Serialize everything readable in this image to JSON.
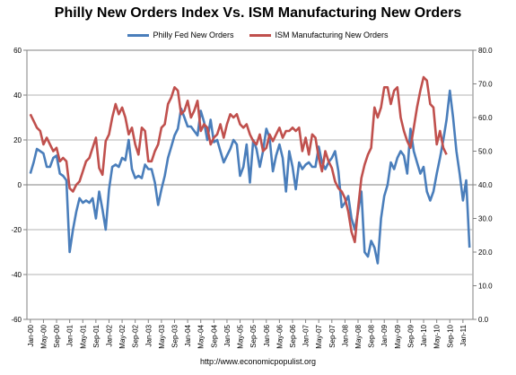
{
  "chart_data": {
    "type": "line",
    "title": "Philly New Orders Index Vs.  ISM Manufacturing New Orders",
    "source": "http://www.economicpopulist.org",
    "xlabel": "",
    "ylabel": "",
    "legend_position": "top-center",
    "grid": true,
    "x_axis_dates": [
      "Jan-00",
      "May-00",
      "Sep-00",
      "Jan-01",
      "May-01",
      "Sep-01",
      "Jan-02",
      "May-02",
      "Sep-02",
      "Jan-03",
      "May-03",
      "Sep-03",
      "Jan-04",
      "May-04",
      "Sep-04",
      "Jan-05",
      "May-05",
      "Sep-05",
      "Jan-06",
      "May-06",
      "Sep-06",
      "Jan-07",
      "May-07",
      "Sep-07",
      "Jan-08",
      "May-08",
      "Sep-08",
      "Jan-09",
      "May-09",
      "Sep-09",
      "Jan-10",
      "May-10",
      "Sep-10",
      "Jan-11",
      "May-11"
    ],
    "y_left": {
      "ylim": [
        -60,
        60
      ],
      "ticks": [
        "-60",
        "-40",
        "-20",
        "0",
        "20",
        "40",
        "60"
      ]
    },
    "y_right": {
      "ylim": [
        0,
        80
      ],
      "ticks": [
        "0.0",
        "10.0",
        "20.0",
        "30.0",
        "40.0",
        "50.0",
        "60.0",
        "70.0",
        "80.0"
      ]
    },
    "series": [
      {
        "name": "Philly Fed New Orders",
        "color": "#4a7ebb",
        "axis": "left",
        "values": [
          5,
          10,
          16,
          15,
          14,
          8,
          8,
          12,
          13,
          5,
          4,
          2,
          -30,
          -20,
          -12,
          -6,
          -8,
          -7,
          -8,
          -6,
          -15,
          -3,
          -11,
          -20,
          -2,
          8,
          9,
          8,
          12,
          11,
          20,
          7,
          3,
          4,
          3,
          9,
          7,
          7,
          1,
          -9,
          -2,
          4,
          12,
          17,
          22,
          25,
          34,
          30,
          26,
          26,
          24,
          22,
          33,
          28,
          20,
          29,
          19,
          20,
          15,
          10,
          13,
          16,
          20,
          18,
          4,
          8,
          18,
          1,
          20,
          16,
          8,
          15,
          25,
          21,
          6,
          13,
          18,
          12,
          -3,
          15,
          8,
          -2,
          10,
          7,
          9,
          10,
          8,
          8,
          17,
          10,
          7,
          10,
          12,
          15,
          6,
          -10,
          -8,
          -5,
          -15,
          -20,
          -12,
          -3,
          -30,
          -32,
          -25,
          -28,
          -35,
          -15,
          -5,
          0,
          10,
          7,
          12,
          15,
          13,
          5,
          25,
          15,
          10,
          5,
          8,
          -3,
          -7,
          -3,
          5,
          12,
          20,
          29,
          42,
          30,
          15,
          5,
          -7,
          2,
          -28
        ]
      },
      {
        "name": "ISM Manufacturing New Orders",
        "color": "#c0504d",
        "axis": "right",
        "values": [
          61,
          59,
          57,
          56,
          52,
          54,
          52,
          50,
          51,
          47,
          48,
          47,
          39,
          38,
          40,
          41,
          44,
          47,
          48,
          51,
          54,
          45,
          43,
          53,
          55,
          60,
          64,
          61,
          63,
          60,
          55,
          57,
          52,
          49,
          57,
          56,
          47,
          47,
          50,
          52,
          57,
          58,
          64,
          66,
          69,
          68,
          61,
          62,
          65,
          60,
          62,
          65,
          56,
          58,
          57,
          52,
          54,
          55,
          58,
          54,
          58,
          61,
          60,
          61,
          58,
          57,
          58,
          55,
          53,
          52,
          55,
          50,
          51,
          55,
          53,
          55,
          57,
          54,
          56,
          56,
          57,
          56,
          57,
          50,
          54,
          49,
          55,
          54,
          48,
          44,
          50,
          47,
          45,
          41,
          39,
          38,
          36,
          32,
          26,
          23,
          33,
          42,
          46,
          49,
          51,
          63,
          60,
          63,
          69,
          69,
          64,
          68,
          69,
          60,
          56,
          53,
          51,
          57,
          63,
          68,
          72,
          71,
          64,
          63,
          52,
          56,
          51,
          49
        ]
      }
    ]
  }
}
